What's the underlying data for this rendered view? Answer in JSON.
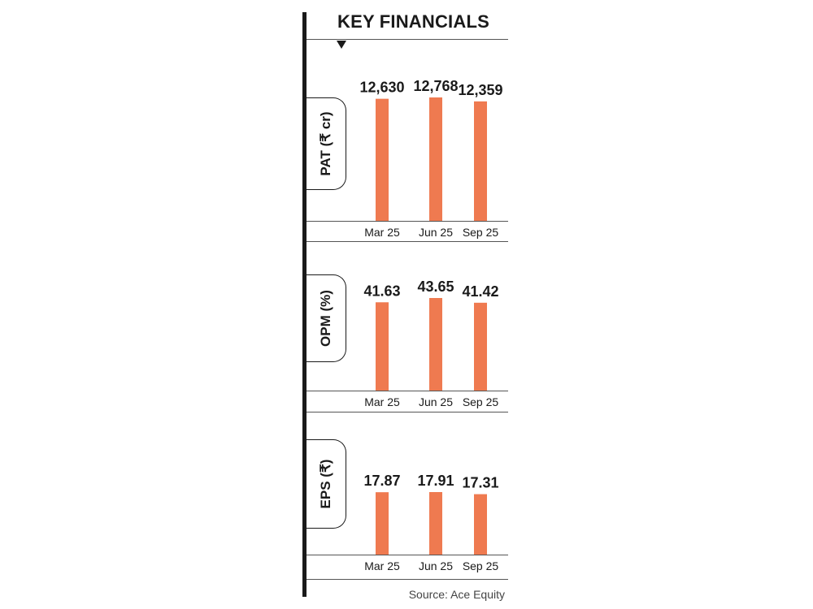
{
  "header": {
    "title": "KEY FINANCIALS"
  },
  "source": "Source: Ace Equity",
  "colors": {
    "bar": "#ef7a50",
    "line": "#1a1a1a"
  },
  "chart_data": [
    {
      "type": "bar",
      "title": "PAT (₹ cr)",
      "categories": [
        "Mar 25",
        "Jun 25",
        "Sep 25"
      ],
      "values": [
        12630,
        12768,
        12359
      ],
      "value_labels": [
        "12,630",
        "12,768",
        "12,359"
      ]
    },
    {
      "type": "bar",
      "title": "OPM (%)",
      "categories": [
        "Mar 25",
        "Jun 25",
        "Sep 25"
      ],
      "values": [
        41.63,
        43.65,
        41.42
      ],
      "value_labels": [
        "41.63",
        "43.65",
        "41.42"
      ]
    },
    {
      "type": "bar",
      "title": "EPS (₹)",
      "categories": [
        "Mar 25",
        "Jun 25",
        "Sep 25"
      ],
      "values": [
        17.87,
        17.91,
        17.31
      ],
      "value_labels": [
        "17.87",
        "17.91",
        "17.31"
      ]
    }
  ]
}
